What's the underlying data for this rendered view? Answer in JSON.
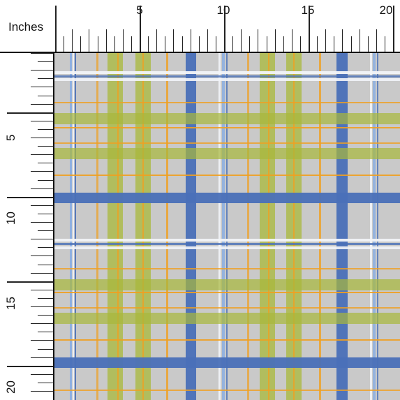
{
  "ruler": {
    "units_label": "Inches",
    "top_numbers": [
      "5",
      "10",
      "15",
      "20"
    ],
    "left_numbers": [
      "5",
      "10",
      "15",
      "20"
    ]
  },
  "fabric": {
    "pattern": "plaid",
    "colors": {
      "base": "#c9c9c9",
      "blue": "#4a70b8",
      "light_blue": "#8fb0e0",
      "white": "#f2f4f8",
      "olive": "#a8b83a",
      "orange": "#f0a020"
    }
  }
}
